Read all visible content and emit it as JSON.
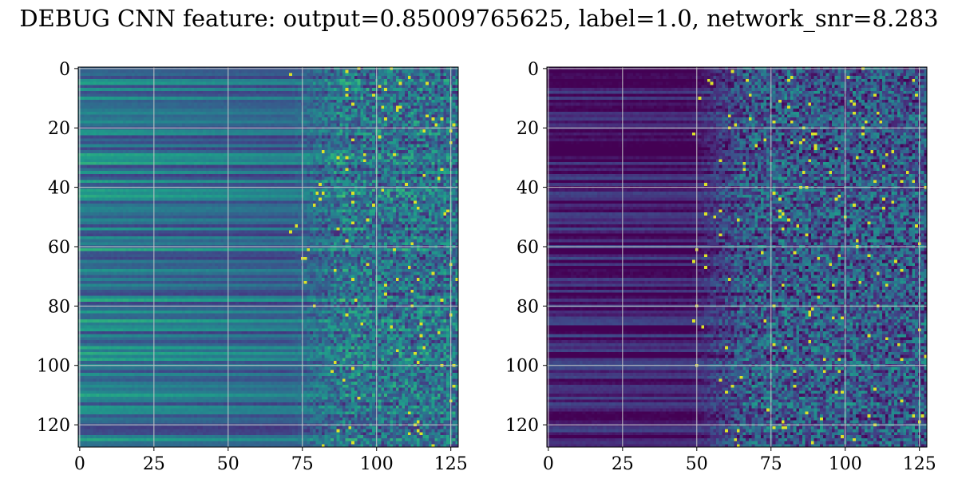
{
  "title": "DEBUG CNN feature: output=0.85009765625, label=1.0, network_snr=8.283",
  "chart_data": [
    {
      "type": "heatmap",
      "colormap": "viridis",
      "rows": 128,
      "cols": 128,
      "xlim": [
        0,
        127
      ],
      "ylim": [
        127,
        0
      ],
      "xticks": [
        "0",
        "25",
        "50",
        "75",
        "100",
        "125"
      ],
      "yticks": [
        "0",
        "20",
        "40",
        "60",
        "80",
        "100",
        "120"
      ],
      "grid": true,
      "legend": "none"
    },
    {
      "type": "heatmap",
      "colormap": "viridis",
      "rows": 128,
      "cols": 128,
      "xlim": [
        0,
        127
      ],
      "ylim": [
        127,
        0
      ],
      "xticks": [
        "0",
        "25",
        "50",
        "75",
        "100",
        "125"
      ],
      "yticks": [
        "0",
        "20",
        "40",
        "60",
        "80",
        "100",
        "120"
      ],
      "grid": true,
      "legend": "none"
    }
  ]
}
